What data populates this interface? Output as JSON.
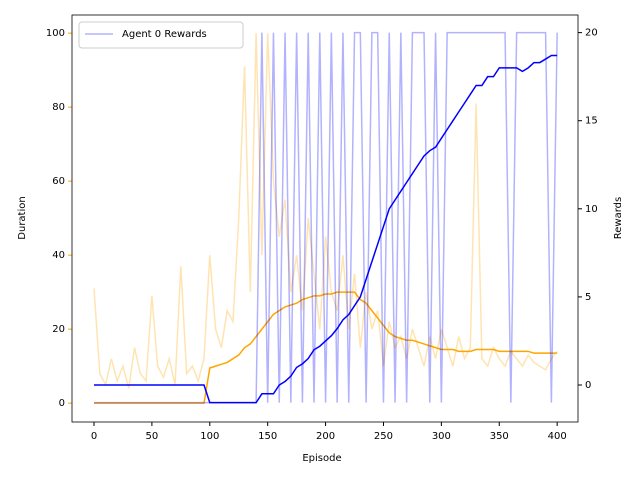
{
  "chart_data": {
    "type": "line",
    "x": [
      0,
      5,
      10,
      15,
      20,
      25,
      30,
      35,
      40,
      45,
      50,
      55,
      60,
      65,
      70,
      75,
      80,
      85,
      90,
      95,
      100,
      105,
      110,
      115,
      120,
      125,
      130,
      135,
      140,
      145,
      150,
      155,
      160,
      165,
      170,
      175,
      180,
      185,
      190,
      195,
      200,
      205,
      210,
      215,
      220,
      225,
      230,
      235,
      240,
      245,
      250,
      255,
      260,
      265,
      270,
      275,
      280,
      285,
      290,
      295,
      300,
      305,
      310,
      315,
      320,
      325,
      330,
      335,
      340,
      345,
      350,
      355,
      360,
      365,
      370,
      375,
      380,
      385,
      390,
      395,
      400
    ],
    "xlabel": "Episode",
    "ylabel": "Duration",
    "y2label": "Rewards",
    "xlim": [
      -19,
      418
    ],
    "xticks": [
      0,
      50,
      100,
      150,
      200,
      250,
      300,
      350,
      400
    ],
    "ylim": [
      -5.1,
      104.9
    ],
    "yticks": [
      0,
      20,
      40,
      60,
      80,
      100
    ],
    "y2lim": [
      -2.1,
      21
    ],
    "y2ticks": [
      0,
      5,
      10,
      15,
      20
    ],
    "ylabel_color": "#ffa500",
    "legend": "upper left",
    "series": [
      {
        "color": "#ffa500",
        "alpha": 0.3,
        "values": [
          31,
          8,
          5,
          12,
          6,
          10,
          4,
          15,
          8,
          6,
          29,
          10,
          7,
          12,
          5,
          37,
          8,
          10,
          6,
          12,
          40,
          20,
          15,
          25,
          22,
          50,
          91,
          30,
          100,
          40,
          100,
          60,
          45,
          55,
          30,
          40,
          25,
          50,
          35,
          20,
          45,
          30,
          25,
          40,
          20,
          35,
          15,
          30,
          20,
          25,
          10,
          22,
          15,
          18,
          12,
          20,
          15,
          10,
          18,
          12,
          20,
          15,
          10,
          18,
          12,
          15,
          81,
          12,
          10,
          15,
          12,
          10,
          14,
          12,
          10,
          13,
          11,
          10,
          9,
          12,
          14
        ]
      },
      {
        "color": "#ffa500",
        "alpha": 1,
        "values": [
          0,
          0,
          0,
          0,
          0,
          0,
          0,
          0,
          0,
          0,
          0,
          0,
          0,
          0,
          0,
          0,
          0,
          0,
          0,
          0,
          9.5,
          10,
          10.5,
          11,
          12,
          13,
          15,
          16,
          18,
          20,
          22,
          24,
          25,
          26,
          26.5,
          27,
          28,
          28.5,
          29,
          29,
          29.5,
          29.5,
          30,
          30,
          30,
          30,
          28,
          27,
          25,
          23,
          21,
          19,
          18,
          17.5,
          17,
          17,
          16.5,
          16,
          15.5,
          15,
          14.5,
          14.5,
          14.5,
          14,
          14,
          14,
          14.5,
          14.5,
          14.5,
          14.5,
          14,
          14,
          14,
          14,
          14,
          14,
          13.5,
          13.5,
          13.5,
          13.5,
          13.5
        ]
      },
      {
        "name": "Agent 0 Rewards",
        "axis": "y2",
        "color": "#0000ff",
        "alpha": 0.3,
        "values": [
          -1,
          -1,
          -1,
          -1,
          -1,
          -1,
          -1,
          -1,
          -1,
          -1,
          -1,
          -1,
          -1,
          -1,
          -1,
          -1,
          -1,
          -1,
          -1,
          -1,
          -1,
          -1,
          -1,
          -1,
          -1,
          -1,
          -1,
          -1,
          -1,
          20,
          -1,
          20,
          -1,
          20,
          -1,
          20,
          -1,
          20,
          -1,
          20,
          -1,
          20,
          -1,
          20,
          -1,
          20,
          20,
          -1,
          20,
          20,
          -1,
          20,
          -1,
          20,
          -1,
          20,
          20,
          20,
          -1,
          20,
          -1,
          20,
          20,
          20,
          20,
          20,
          20,
          20,
          20,
          20,
          20,
          20,
          -1,
          20,
          20,
          20,
          20,
          20,
          20,
          -1,
          20
        ]
      },
      {
        "axis": "y2",
        "color": "#0000ff",
        "alpha": 1,
        "values": [
          0,
          0,
          0,
          0,
          0,
          0,
          0,
          0,
          0,
          0,
          0,
          0,
          0,
          0,
          0,
          0,
          0,
          0,
          0,
          0,
          -1,
          -1,
          -1,
          -1,
          -1,
          -1,
          -1,
          -1,
          -1,
          -0.5,
          -0.5,
          -0.5,
          0,
          0.2,
          0.5,
          1,
          1.2,
          1.5,
          2,
          2.2,
          2.5,
          2.8,
          3.2,
          3.7,
          4,
          4.5,
          5,
          6,
          7,
          8,
          9,
          10,
          10.5,
          11,
          11.5,
          12,
          12.5,
          13,
          13.3,
          13.5,
          14,
          14.5,
          15,
          15.5,
          16,
          16.5,
          17,
          17,
          17.5,
          17.5,
          18,
          18,
          18,
          18,
          17.8,
          18,
          18.3,
          18.3,
          18.5,
          18.7,
          18.7
        ]
      }
    ]
  }
}
